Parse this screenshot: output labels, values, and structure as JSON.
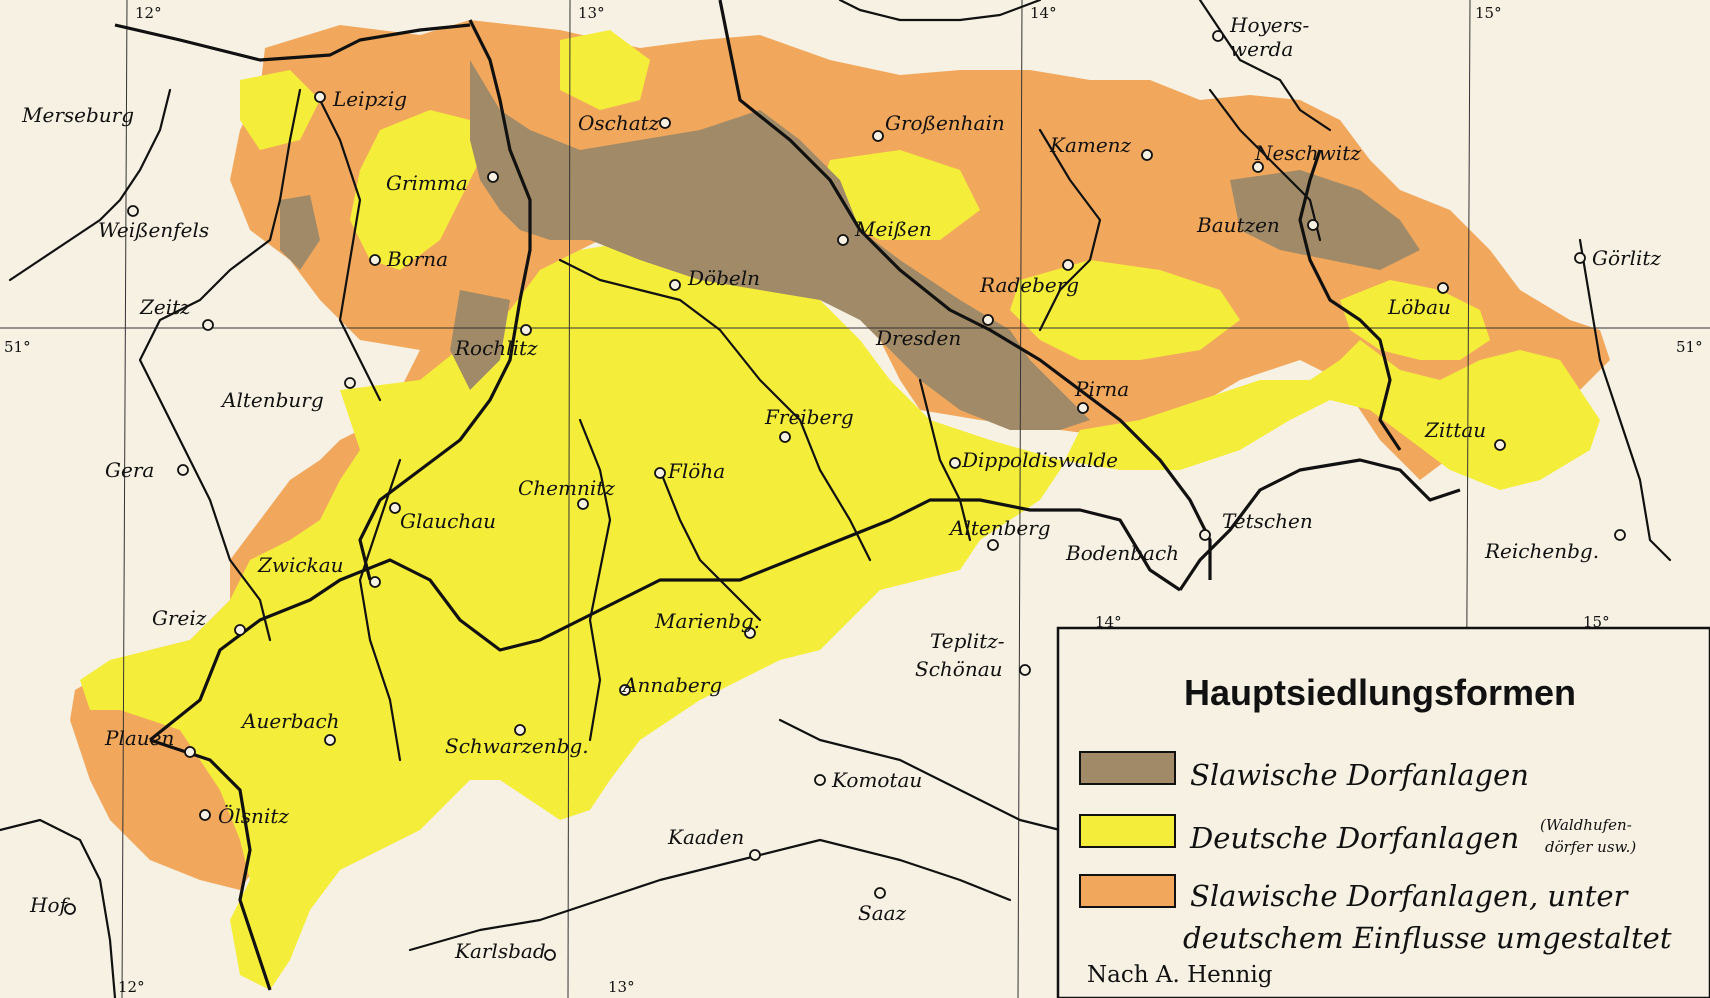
{
  "legend": {
    "title": "Hauptsiedlungsformen",
    "items": [
      {
        "label": "Slawische Dorfanlagen",
        "color": "#a08a67"
      },
      {
        "label": "Deutsche Dorfanlagen",
        "note_line1": "(Waldhufen-",
        "note_line2": "dörfer usw.)",
        "color": "#f4ee3a"
      },
      {
        "label_line1": "Slawische Dorfanlagen, unter",
        "label_line2": "deutschem Einflusse umgestaltet",
        "color": "#f2a85c"
      }
    ],
    "source": "Nach A. Hennig"
  },
  "graticule": {
    "longitudes_top": [
      "12°",
      "13°",
      "14°",
      "15°"
    ],
    "longitudes_bottom": [
      "12°",
      "13°",
      "14°",
      "15°"
    ],
    "latitude_left": "51°",
    "latitude_right": "51°"
  },
  "places": {
    "leipzig": "Leipzig",
    "merseburg": "Merseburg",
    "weissenfels": "Weißenfels",
    "zeitz": "Zeitz",
    "altenburg": "Altenburg",
    "gera": "Gera",
    "greiz": "Greiz",
    "hof": "Hof",
    "plauen": "Plauen",
    "oelsnitz": "Ölsnitz",
    "auerbach": "Auerbach",
    "zwickau": "Zwickau",
    "glauchau": "Glauchau",
    "grimma": "Grimma",
    "borna": "Borna",
    "rochlitz": "Rochlitz",
    "oschatz": "Oschatz",
    "doebeln": "Döbeln",
    "chemnitz": "Chemnitz",
    "floeha": "Flöha",
    "freiberg": "Freiberg",
    "marienbg": "Marienbg.",
    "annaberg": "Annaberg",
    "schwarzenbg": "Schwarzenbg.",
    "karlsbad": "Karlsbad",
    "kaaden": "Kaaden",
    "saaz": "Saaz",
    "komotau": "Komotau",
    "teplitz1": "Teplitz-",
    "teplitz2": "Schönau",
    "grossenhain": "Großenhain",
    "meissen": "Meißen",
    "dresden": "Dresden",
    "radeberg": "Radeberg",
    "kamenz": "Kamenz",
    "hoyers1": "Hoyers-",
    "hoyers2": "werda",
    "neschwitz": "Neschwitz",
    "bautzen": "Bautzen",
    "loebau": "Löbau",
    "goerlitz": "Görlitz",
    "zittau": "Zittau",
    "reichenbg": "Reichenbg.",
    "pirna": "Pirna",
    "dippoldiswalde": "Dippoldiswalde",
    "altenberg": "Altenberg",
    "tetschen": "Tetschen",
    "bodenbach": "Bodenbach"
  }
}
